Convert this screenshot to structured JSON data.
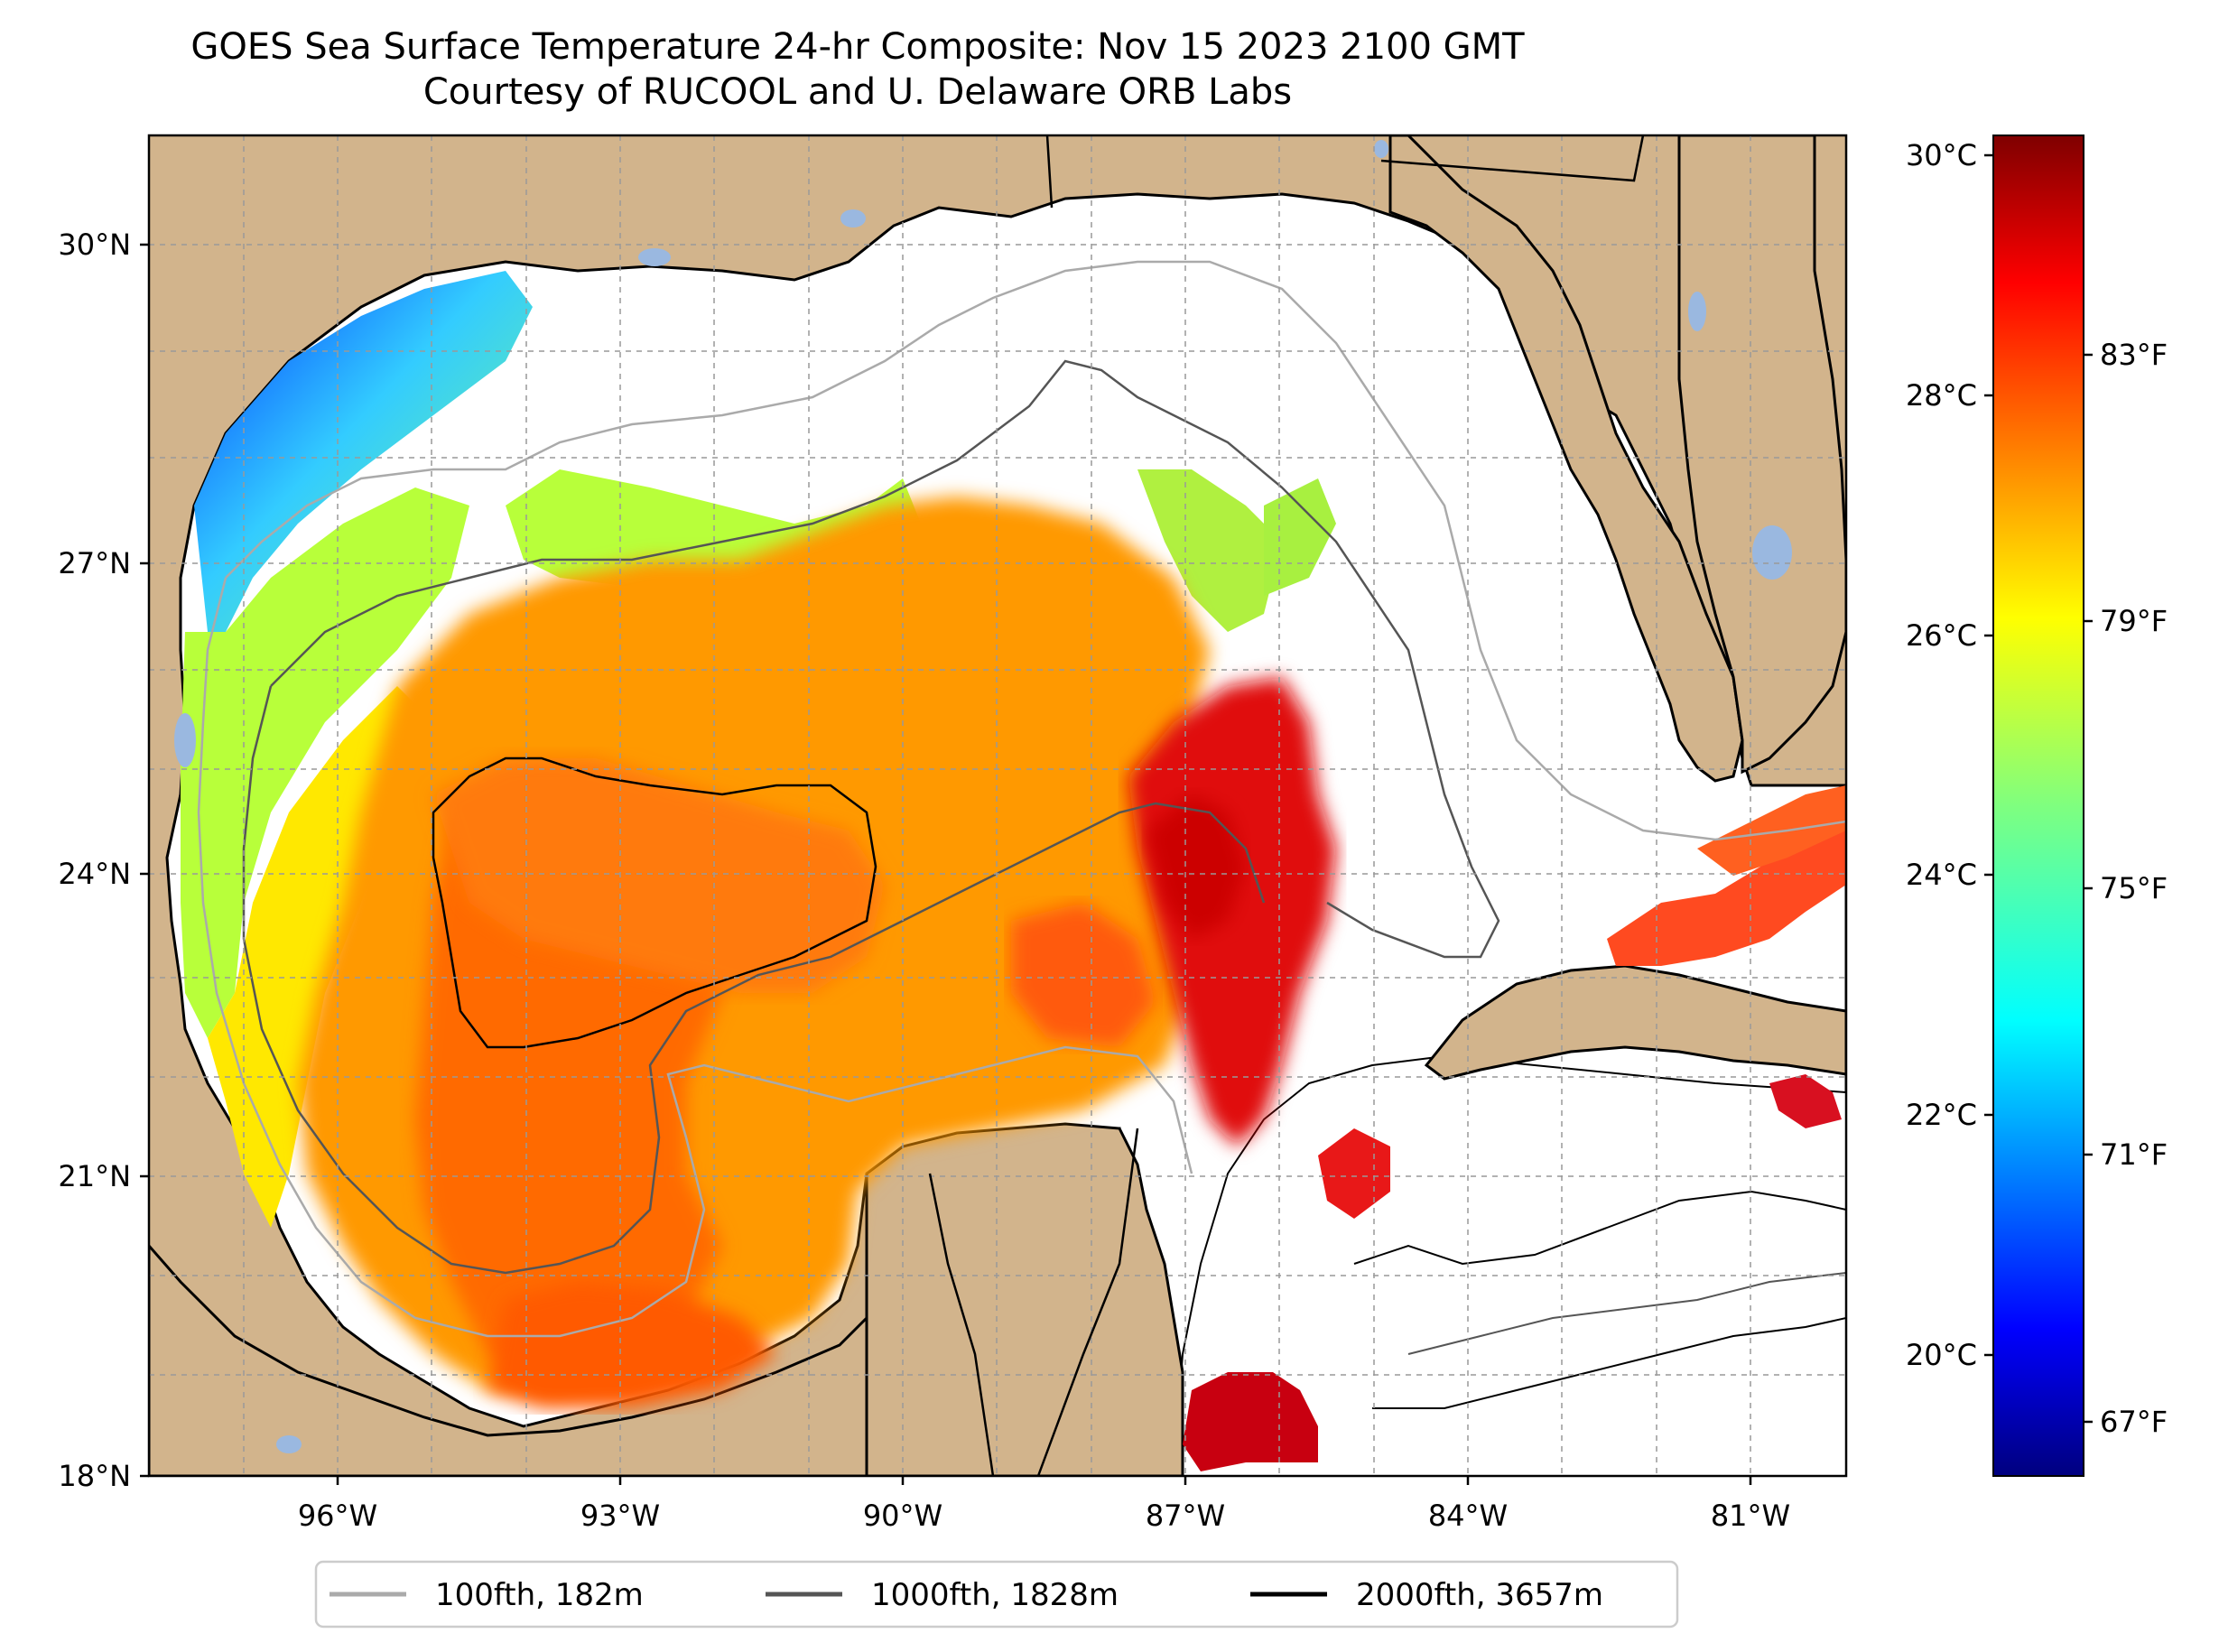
{
  "title": {
    "line1": "GOES Sea Surface Temperature 24-hr Composite: Nov 15 2023 2100 GMT",
    "line2": "Courtesy of RUCOOL and U. Delaware ORB Labs"
  },
  "map": {
    "lat_labels": [
      {
        "value": 30,
        "text": "30°N"
      },
      {
        "value": 27,
        "text": "27°N"
      },
      {
        "value": 24,
        "text": "24°N"
      },
      {
        "value": 21,
        "text": "21°N"
      },
      {
        "value": 18,
        "text": "18°N"
      }
    ],
    "lon_labels": [
      {
        "value": -96,
        "text": "96°W"
      },
      {
        "value": -93,
        "text": "93°W"
      },
      {
        "value": -90,
        "text": "90°W"
      },
      {
        "value": -87,
        "text": "87°W"
      },
      {
        "value": -84,
        "text": "84°W"
      },
      {
        "value": -81,
        "text": "81°W"
      }
    ],
    "extent": {
      "lon": [
        -98,
        -80
      ],
      "lat": [
        18,
        31
      ]
    },
    "colors": {
      "land": "#d2b48c",
      "water_inland": "#9ab8e0",
      "ocean_nodata": "#ffffff"
    }
  },
  "colorbar": {
    "c_labels": [
      {
        "value": 30,
        "text": "30°C"
      },
      {
        "value": 28,
        "text": "28°C"
      },
      {
        "value": 26,
        "text": "26°C"
      },
      {
        "value": 24,
        "text": "24°C"
      },
      {
        "value": 22,
        "text": "22°C"
      },
      {
        "value": 20,
        "text": "20°C"
      }
    ],
    "f_labels": [
      {
        "value": 83,
        "text": "83°F"
      },
      {
        "value": 79,
        "text": "79°F"
      },
      {
        "value": 75,
        "text": "75°F"
      },
      {
        "value": 71,
        "text": "71°F"
      },
      {
        "value": 67,
        "text": "67°F"
      }
    ],
    "range_c": [
      19,
      30.2
    ],
    "colormap": "jet"
  },
  "legend": {
    "items": [
      {
        "label": "100fth, 182m",
        "color": "#aaaaaa"
      },
      {
        "label": "1000fth, 1828m",
        "color": "#555555"
      },
      {
        "label": "2000fth, 3657m",
        "color": "#000000"
      }
    ]
  }
}
